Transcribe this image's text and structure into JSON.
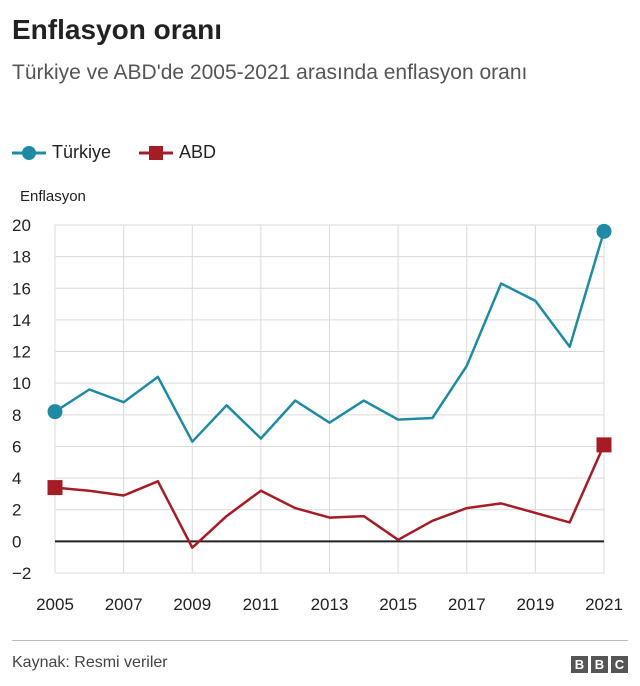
{
  "chart_data": {
    "type": "line",
    "title": "Enflasyon oranı",
    "subtitle": "Türkiye ve ABD'de 2005-2021 arasında enflasyon oranı",
    "ylabel": "Enflasyon",
    "xlabel": "",
    "x": [
      2005,
      2006,
      2007,
      2008,
      2009,
      2010,
      2011,
      2012,
      2013,
      2014,
      2015,
      2016,
      2017,
      2018,
      2019,
      2020,
      2021
    ],
    "xticks": [
      "2005",
      "2007",
      "2009",
      "2011",
      "2013",
      "2015",
      "2017",
      "2019",
      "2021"
    ],
    "yticks": [
      "20",
      "18",
      "16",
      "14",
      "12",
      "10",
      "8",
      "6",
      "4",
      "2",
      "0",
      "−2"
    ],
    "ylim": [
      -2,
      20
    ],
    "series": [
      {
        "name": "Türkiye",
        "color": "#1f8ba3",
        "marker": "circle",
        "values": [
          8.2,
          9.6,
          8.8,
          10.4,
          6.3,
          8.6,
          6.5,
          8.9,
          7.5,
          8.9,
          7.7,
          7.8,
          11.1,
          16.3,
          15.2,
          12.3,
          19.6
        ]
      },
      {
        "name": "ABD",
        "color": "#a51c24",
        "marker": "square",
        "values": [
          3.4,
          3.2,
          2.9,
          3.8,
          -0.4,
          1.6,
          3.2,
          2.1,
          1.5,
          1.6,
          0.1,
          1.3,
          2.1,
          2.4,
          1.8,
          1.2,
          6.1
        ]
      }
    ]
  },
  "footer": {
    "source": "Kaynak: Resmi veriler",
    "logo": [
      "B",
      "B",
      "C"
    ]
  }
}
